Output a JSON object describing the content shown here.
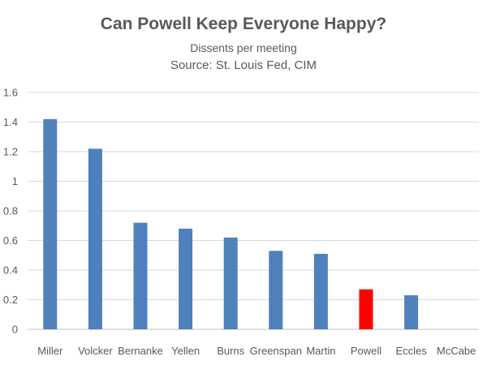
{
  "chart_data": {
    "type": "bar",
    "title": "Can Powell Keep Everyone Happy?",
    "subtitle": "Dissents per meeting",
    "source": "Source: St. Louis Fed, CIM",
    "categories": [
      "Miller",
      "Volcker",
      "Bernanke",
      "Yellen",
      "Burns",
      "Greenspan",
      "Martin",
      "Powell",
      "Eccles",
      "McCabe"
    ],
    "values": [
      1.42,
      1.22,
      0.72,
      0.68,
      0.62,
      0.53,
      0.51,
      0.27,
      0.23,
      0.0
    ],
    "ylim": [
      0,
      1.6
    ],
    "yticks": [
      0,
      0.2,
      0.4,
      0.6,
      0.8,
      1,
      1.2,
      1.4,
      1.6
    ],
    "ytick_labels": [
      "0",
      "0.2",
      "0.4",
      "0.6",
      "0.8",
      "1",
      "1.2",
      "1.4",
      "1.6"
    ],
    "grid": true,
    "colors": {
      "default_bar": "#4F81BD",
      "highlight_bar": "#FF0000",
      "highlight_category": "Powell",
      "grid": "#D9D9D9",
      "axis": "#BFBFBF"
    }
  }
}
